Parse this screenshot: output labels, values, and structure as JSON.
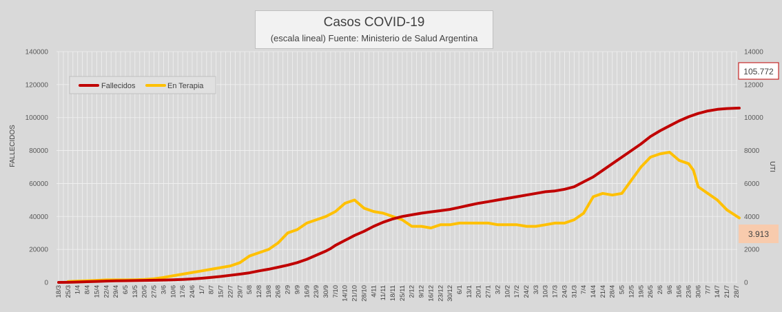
{
  "chart_data": {
    "type": "line",
    "title": "Casos COVID-19",
    "subtitle": "(escala lineal) Fuente: Ministerio de Salud Argentina",
    "ylabel": "FALLECIDOS",
    "y2label": "UTI",
    "ylim": [
      0,
      140000
    ],
    "y2lim": [
      0,
      14000
    ],
    "y_ticks": [
      "0",
      "20000",
      "40000",
      "60000",
      "80000",
      "100000",
      "120000",
      "140000"
    ],
    "y2_ticks": [
      "0",
      "2000",
      "4000",
      "6000",
      "8000",
      "10000",
      "12000",
      "14000"
    ],
    "x_ticks": [
      "18/3",
      "25/3",
      "1/4",
      "8/4",
      "15/4",
      "22/4",
      "29/4",
      "6/5",
      "13/5",
      "20/5",
      "27/5",
      "3/6",
      "10/6",
      "17/6",
      "24/6",
      "1/7",
      "8/7",
      "15/7",
      "22/7",
      "29/7",
      "5/8",
      "12/8",
      "19/8",
      "26/8",
      "2/9",
      "9/9",
      "16/9",
      "23/9",
      "30/9",
      "7/10",
      "14/10",
      "21/10",
      "28/10",
      "4/11",
      "11/11",
      "18/11",
      "25/11",
      "2/12",
      "9/12",
      "16/12",
      "23/12",
      "30/12",
      "6/1",
      "13/1",
      "20/1",
      "27/1",
      "3/2",
      "10/2",
      "17/2",
      "24/2",
      "3/3",
      "10/3",
      "17/3",
      "24/3",
      "31/3",
      "7/4",
      "14/4",
      "21/4",
      "28/4",
      "5/5",
      "12/5",
      "19/5",
      "26/5",
      "2/6",
      "9/6",
      "16/6",
      "23/6",
      "30/6",
      "7/7",
      "14/7",
      "21/7",
      "28/7"
    ],
    "grid": true,
    "legend_position": "top-left",
    "series": [
      {
        "name": "Fallecidos",
        "axis": "left",
        "color": "#c00000",
        "x_index": [
          0,
          1,
          2,
          3,
          4,
          5,
          6,
          7,
          8,
          9,
          10,
          11,
          12,
          13,
          14,
          15,
          16,
          17,
          18,
          19,
          20,
          21,
          22,
          23,
          24,
          25,
          26,
          27,
          28,
          28.5,
          29,
          30,
          31,
          32,
          33,
          34,
          35,
          36,
          37,
          38,
          39,
          40,
          41,
          42,
          43,
          44,
          45,
          46,
          47,
          48,
          49,
          50,
          51,
          52,
          53,
          54,
          55,
          56,
          57,
          58,
          59,
          60,
          61,
          62,
          63,
          64,
          65,
          66,
          67,
          68,
          69,
          70,
          71.3
        ],
        "values": [
          0,
          50,
          200,
          400,
          600,
          800,
          900,
          1000,
          1100,
          1200,
          1300,
          1400,
          1600,
          1800,
          2100,
          2500,
          3000,
          3600,
          4300,
          5000,
          5800,
          7000,
          8000,
          9200,
          10500,
          12000,
          14000,
          16500,
          19000,
          20500,
          22500,
          25500,
          28500,
          31000,
          34000,
          36500,
          38500,
          40000,
          41000,
          42000,
          42800,
          43500,
          44300,
          45500,
          46800,
          48000,
          49000,
          50000,
          51000,
          52000,
          53000,
          54000,
          55000,
          55500,
          56500,
          58000,
          61000,
          64000,
          68000,
          72000,
          76000,
          80000,
          84000,
          88500,
          92000,
          95000,
          98000,
          100500,
          102500,
          104000,
          105000,
          105500,
          105772
        ]
      },
      {
        "name": "En Terapia",
        "axis": "right",
        "color": "#ffc000",
        "x_index": [
          1,
          2,
          3,
          4,
          5,
          6,
          7,
          8,
          9,
          10,
          11,
          12,
          13,
          14,
          15,
          16,
          17,
          18,
          19,
          20,
          21,
          22,
          23,
          24,
          25,
          26,
          27,
          28,
          29,
          30,
          31,
          32,
          33,
          34,
          35,
          36,
          37,
          38,
          39,
          40,
          41,
          42,
          43,
          44,
          45,
          46,
          47,
          48,
          49,
          50,
          51,
          52,
          53,
          54,
          55,
          56,
          57,
          58,
          59,
          60,
          61,
          62,
          63,
          64,
          65,
          66,
          66.5,
          67,
          68,
          69,
          70,
          71.3
        ],
        "values": [
          50,
          80,
          100,
          120,
          150,
          150,
          150,
          160,
          180,
          220,
          300,
          400,
          500,
          600,
          700,
          800,
          900,
          1000,
          1200,
          1600,
          1800,
          2000,
          2400,
          3000,
          3200,
          3600,
          3800,
          4000,
          4300,
          4800,
          5000,
          4500,
          4300,
          4200,
          4000,
          3800,
          3400,
          3400,
          3300,
          3500,
          3500,
          3600,
          3600,
          3600,
          3600,
          3500,
          3500,
          3500,
          3400,
          3400,
          3500,
          3600,
          3600,
          3800,
          4200,
          5200,
          5400,
          5300,
          5400,
          6200,
          7000,
          7600,
          7800,
          7900,
          7400,
          7200,
          6800,
          5800,
          5400,
          5000,
          4400,
          3913
        ]
      }
    ],
    "end_labels": {
      "fallecidos": "105.772",
      "terapia": "3.913"
    }
  }
}
